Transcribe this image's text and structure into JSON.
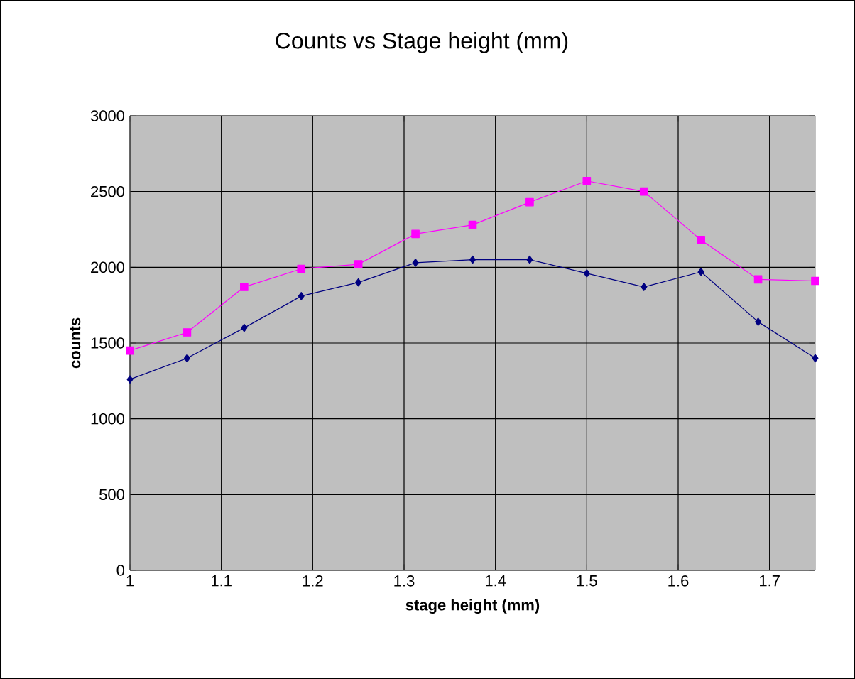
{
  "chart_data": {
    "type": "line",
    "title": "Counts vs Stage height (mm)",
    "xlabel": "stage height (mm)",
    "ylabel": "counts",
    "x": [
      1,
      1.0625,
      1.125,
      1.1875,
      1.25,
      1.3125,
      1.375,
      1.4375,
      1.5,
      1.5625,
      1.625,
      1.6875,
      1.75
    ],
    "series": [
      {
        "color": "#000080",
        "marker": "diamond",
        "values": [
          1260,
          1400,
          1600,
          1810,
          1900,
          2030,
          2050,
          2050,
          1960,
          1870,
          1970,
          1640,
          1400
        ]
      },
      {
        "color": "#ff00ff",
        "marker": "square",
        "values": [
          1450,
          1570,
          1870,
          1990,
          2020,
          2220,
          2280,
          2430,
          2570,
          2500,
          2180,
          1920,
          1910
        ]
      }
    ],
    "xlim": [
      1,
      1.75
    ],
    "xticks": [
      1,
      1.1,
      1.2,
      1.3,
      1.4,
      1.5,
      1.6,
      1.7
    ],
    "ylim": [
      0,
      3000
    ],
    "yticks": [
      0,
      500,
      1000,
      1500,
      2000,
      2500,
      3000
    ],
    "grid": true
  }
}
